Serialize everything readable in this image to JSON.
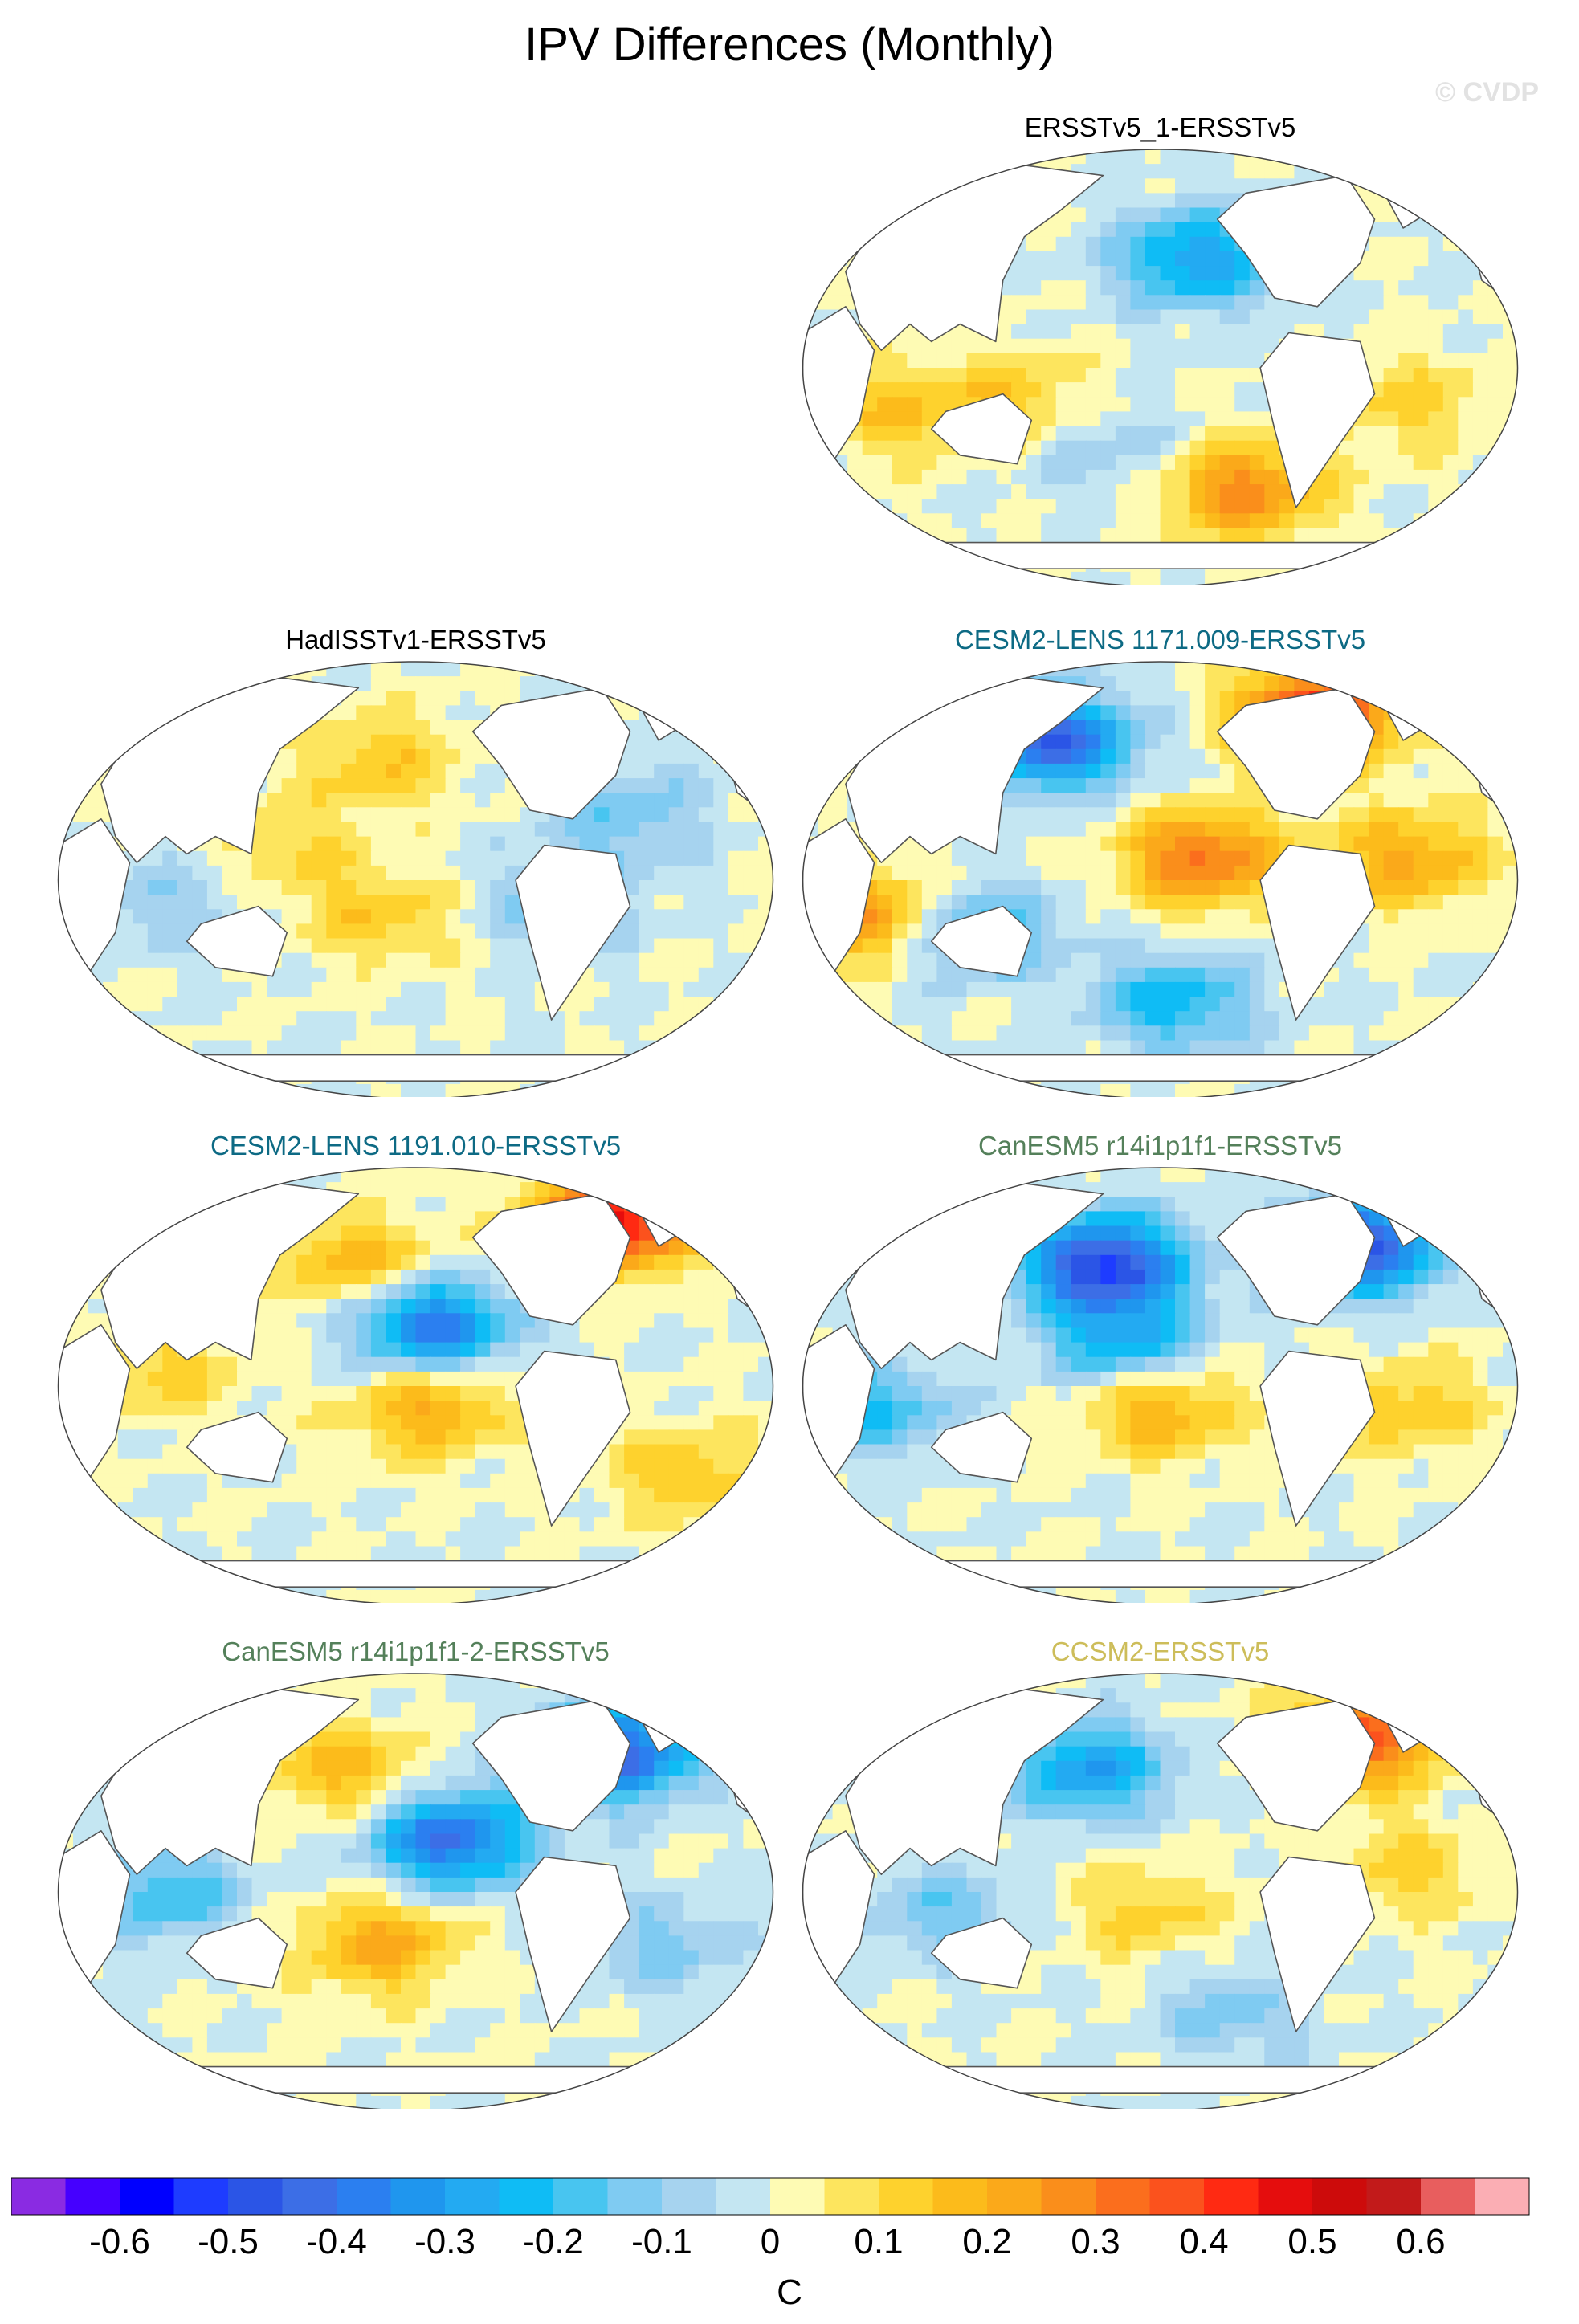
{
  "figure": {
    "title": "IPV Differences (Monthly)",
    "watermark": "© CVDP"
  },
  "panels": [
    {
      "label": "ERSSTv5_1-ERSSTv5",
      "label_color": "#000000",
      "pattern": [
        [
          0.55,
          0.25,
          -0.3
        ],
        [
          0.62,
          0.78,
          0.28
        ],
        [
          0.3,
          0.58,
          0.14
        ],
        [
          0.42,
          0.68,
          -0.1
        ],
        [
          0.12,
          0.6,
          0.14
        ],
        [
          0.85,
          0.58,
          0.12
        ]
      ]
    },
    {
      "label": "HadISSTv1-ERSSTv5",
      "label_color": "#000000",
      "pattern": [
        [
          0.45,
          0.22,
          0.14
        ],
        [
          0.45,
          0.58,
          0.14
        ],
        [
          0.32,
          0.42,
          0.1
        ],
        [
          0.7,
          0.55,
          -0.14
        ],
        [
          0.15,
          0.55,
          -0.1
        ],
        [
          0.8,
          0.35,
          -0.14
        ]
      ]
    },
    {
      "label": "CESM2-LENS 1171.009-ERSSTv5",
      "label_color": "#0d6a84",
      "pattern": [
        [
          0.56,
          0.45,
          0.32
        ],
        [
          0.35,
          0.18,
          -0.45
        ],
        [
          0.72,
          0.12,
          0.45
        ],
        [
          0.25,
          0.62,
          -0.2
        ],
        [
          0.08,
          0.58,
          0.26
        ],
        [
          0.85,
          0.45,
          0.22
        ],
        [
          0.52,
          0.78,
          -0.24
        ]
      ]
    },
    {
      "label": "CESM2-LENS 1191.010-ERSSTv5",
      "label_color": "#0d6a84",
      "pattern": [
        [
          0.52,
          0.36,
          -0.4
        ],
        [
          0.52,
          0.55,
          0.22
        ],
        [
          0.42,
          0.22,
          0.2
        ],
        [
          0.78,
          0.12,
          0.48
        ],
        [
          0.15,
          0.46,
          0.12
        ],
        [
          0.88,
          0.7,
          0.14
        ]
      ]
    },
    {
      "label": "CanESM5 r14i1p1f1-ERSSTv5",
      "label_color": "#54805a",
      "pattern": [
        [
          0.42,
          0.22,
          -0.52
        ],
        [
          0.5,
          0.55,
          0.22
        ],
        [
          0.78,
          0.18,
          -0.48
        ],
        [
          0.45,
          0.4,
          -0.26
        ],
        [
          0.1,
          0.55,
          -0.2
        ],
        [
          0.85,
          0.55,
          0.14
        ]
      ]
    },
    {
      "label": "CanESM5 r14i1p1f1-2-ERSSTv5",
      "label_color": "#54805a",
      "pattern": [
        [
          0.55,
          0.38,
          -0.42
        ],
        [
          0.45,
          0.62,
          0.22
        ],
        [
          0.4,
          0.22,
          0.18
        ],
        [
          0.78,
          0.18,
          -0.46
        ],
        [
          0.15,
          0.5,
          -0.2
        ],
        [
          0.85,
          0.62,
          -0.12
        ]
      ]
    },
    {
      "label": "CCSM2-ERSSTv5",
      "label_color": "#cdbd5a",
      "pattern": [
        [
          0.4,
          0.22,
          -0.3
        ],
        [
          0.78,
          0.15,
          0.36
        ],
        [
          0.48,
          0.55,
          0.12
        ],
        [
          0.2,
          0.55,
          -0.14
        ],
        [
          0.85,
          0.45,
          0.12
        ],
        [
          0.6,
          0.78,
          -0.12
        ]
      ]
    }
  ],
  "colorbar": {
    "units": "C",
    "colors": [
      "#8a2be2",
      "#4500ff",
      "#0000ff",
      "#1e3cff",
      "#2b55e6",
      "#3c6ee6",
      "#2b7ff0",
      "#1f96ee",
      "#23aaf2",
      "#0fbcf5",
      "#48c5f0",
      "#7fcbf2",
      "#a6d3ef",
      "#c4e6f2",
      "#fefbb4",
      "#fde55e",
      "#fed22d",
      "#fcbb1b",
      "#fba91a",
      "#fa8e1b",
      "#fb6e1d",
      "#fb521d",
      "#ff2a12",
      "#e50d0d",
      "#cd0b0b",
      "#c21a1a",
      "#e85e5e",
      "#fbaeb4"
    ],
    "tick_labels": [
      "-0.6",
      "-0.5",
      "-0.4",
      "-0.3",
      "-0.2",
      "-0.1",
      "0",
      "0.1",
      "0.2",
      "0.3",
      "0.4",
      "0.5",
      "0.6"
    ]
  }
}
